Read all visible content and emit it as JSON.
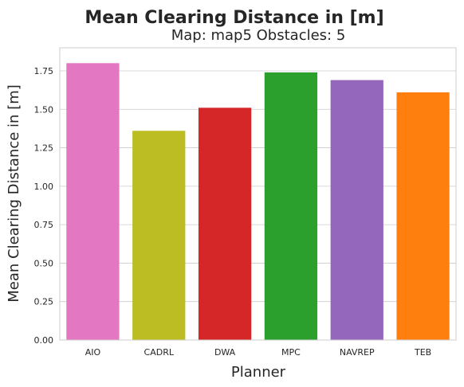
{
  "chart_data": {
    "type": "bar",
    "title": "Mean Clearing Distance in [m]",
    "subtitle": "Map: map5 Obstacles: 5",
    "xlabel": "Planner",
    "ylabel": "Mean Clearing Distance in [m]",
    "categories": [
      "AIO",
      "CADRL",
      "DWA",
      "MPC",
      "NAVREP",
      "TEB"
    ],
    "values": [
      1.8,
      1.36,
      1.51,
      1.74,
      1.69,
      1.61
    ],
    "colors": [
      "#e377c2",
      "#bcbd22",
      "#d62728",
      "#2ca02c",
      "#9467bd",
      "#ff7f0e"
    ],
    "ylim": [
      0,
      1.9
    ],
    "yticks": [
      0.0,
      0.25,
      0.5,
      0.75,
      1.0,
      1.25,
      1.5,
      1.75
    ],
    "ytick_labels": [
      "0.00",
      "0.25",
      "0.50",
      "0.75",
      "1.00",
      "1.25",
      "1.50",
      "1.75"
    ],
    "grid": "horizontal",
    "legend": "none"
  }
}
